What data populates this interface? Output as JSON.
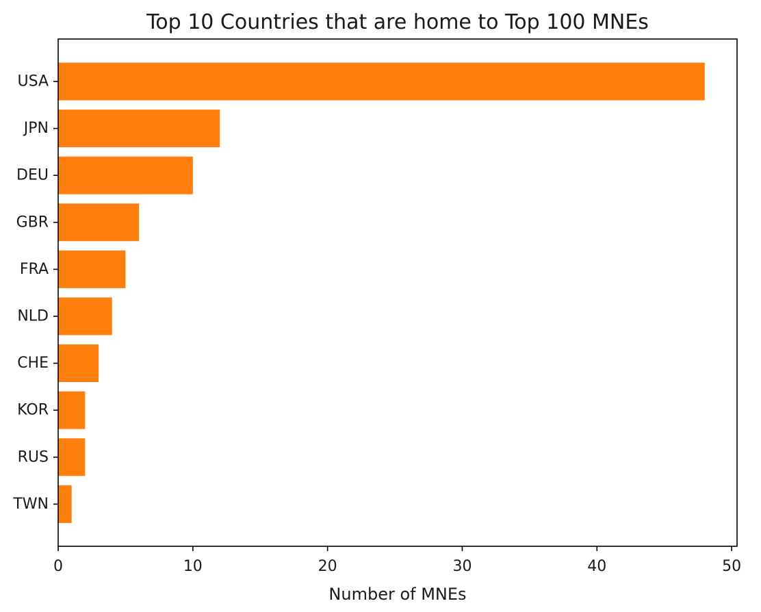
{
  "chart_data": {
    "type": "bar",
    "orientation": "horizontal",
    "title": "Top 10 Countries that are home to Top 100 MNEs",
    "xlabel": "Number of MNEs",
    "ylabel": "",
    "categories": [
      "USA",
      "JPN",
      "DEU",
      "GBR",
      "FRA",
      "NLD",
      "CHE",
      "KOR",
      "RUS",
      "TWN"
    ],
    "values": [
      48,
      12,
      10,
      6,
      5,
      4,
      3,
      2,
      2,
      1
    ],
    "xlim": [
      0,
      50.4
    ],
    "xticks": [
      0,
      10,
      20,
      30,
      40,
      50
    ],
    "grid": false,
    "bar_color": "#ff7f0e"
  }
}
